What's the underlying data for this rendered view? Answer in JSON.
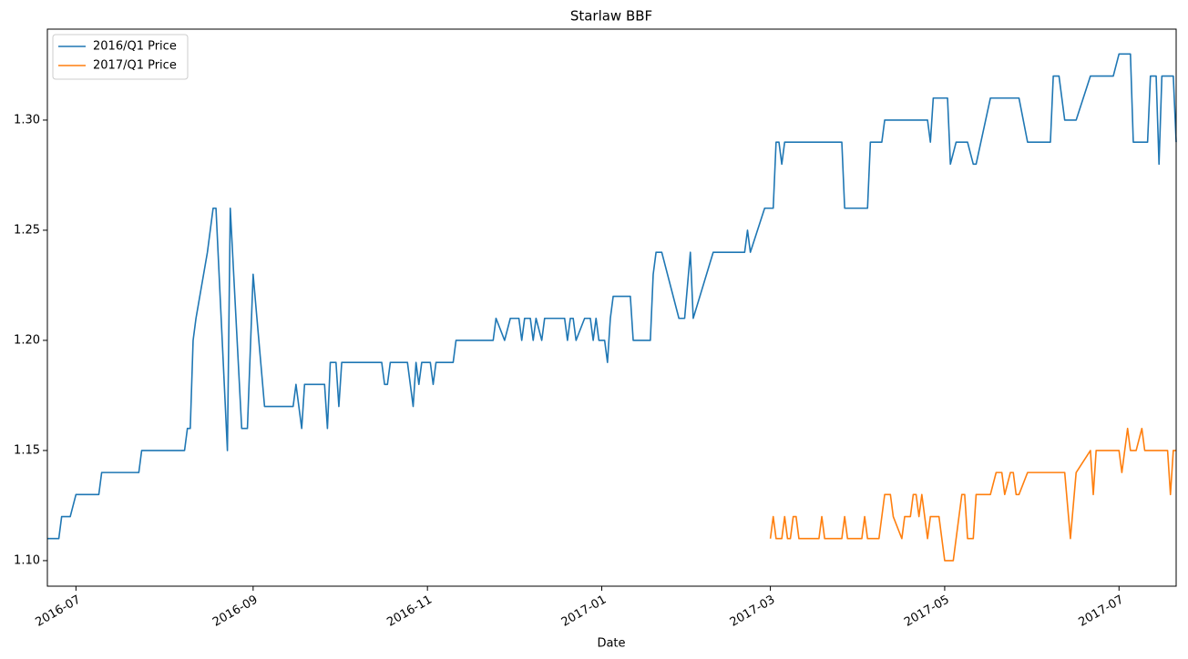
{
  "chart_data": {
    "type": "line",
    "title": "Starlaw BBF",
    "x_label": "Date",
    "xlim": [
      "2016-06-21",
      "2017-07-21"
    ],
    "xticks": [
      "2016-07",
      "2016-09",
      "2016-11",
      "2017-01",
      "2017-03",
      "2017-05",
      "2017-07"
    ],
    "ylim": [
      1.0884,
      1.3413
    ],
    "yticks": [
      {
        "value": 1.1,
        "label": "1.10"
      },
      1.15,
      {
        "value": 1.2,
        "label": "1.20"
      },
      1.25,
      {
        "value": 1.3,
        "label": "1.30"
      }
    ],
    "grid": false,
    "legend": "upper left",
    "series": [
      {
        "name": "2016/Q1 Price",
        "color": "#1f77b4",
        "x": [
          "2016-06-21",
          "2016-06-25",
          "2016-06-26",
          "2016-06-29",
          "2016-07-01",
          "2016-07-09",
          "2016-07-10",
          "2016-07-23",
          "2016-07-24",
          "2016-08-08",
          "2016-08-09",
          "2016-08-10",
          "2016-08-11",
          "2016-08-12",
          "2016-08-16",
          "2016-08-18",
          "2016-08-19",
          "2016-08-23",
          "2016-08-24",
          "2016-08-28",
          "2016-08-30",
          "2016-09-01",
          "2016-09-05",
          "2016-09-15",
          "2016-09-16",
          "2016-09-18",
          "2016-09-19",
          "2016-09-26",
          "2016-09-27",
          "2016-09-28",
          "2016-09-30",
          "2016-10-01",
          "2016-10-02",
          "2016-10-16",
          "2016-10-17",
          "2016-10-18",
          "2016-10-19",
          "2016-10-25",
          "2016-10-27",
          "2016-10-28",
          "2016-10-29",
          "2016-10-30",
          "2016-11-02",
          "2016-11-03",
          "2016-11-04",
          "2016-11-10",
          "2016-11-11",
          "2016-11-24",
          "2016-11-25",
          "2016-11-28",
          "2016-11-30",
          "2016-12-03",
          "2016-12-04",
          "2016-12-05",
          "2016-12-07",
          "2016-12-08",
          "2016-12-09",
          "2016-12-11",
          "2016-12-12",
          "2016-12-19",
          "2016-12-20",
          "2016-12-21",
          "2016-12-22",
          "2016-12-23",
          "2016-12-26",
          "2016-12-28",
          "2016-12-29",
          "2016-12-30",
          "2016-12-31",
          "2017-01-02",
          "2017-01-03",
          "2017-01-04",
          "2017-01-05",
          "2017-01-11",
          "2017-01-12",
          "2017-01-18",
          "2017-01-19",
          "2017-01-20",
          "2017-01-22",
          "2017-01-28",
          "2017-01-30",
          "2017-02-01",
          "2017-02-02",
          "2017-02-09",
          "2017-02-20",
          "2017-02-21",
          "2017-02-22",
          "2017-02-27",
          "2017-03-02",
          "2017-03-03",
          "2017-03-04",
          "2017-03-05",
          "2017-03-06",
          "2017-03-26",
          "2017-03-27",
          "2017-04-04",
          "2017-04-05",
          "2017-04-09",
          "2017-04-10",
          "2017-04-25",
          "2017-04-26",
          "2017-04-27",
          "2017-05-02",
          "2017-05-03",
          "2017-05-05",
          "2017-05-09",
          "2017-05-11",
          "2017-05-12",
          "2017-05-17",
          "2017-05-27",
          "2017-05-30",
          "2017-06-07",
          "2017-06-08",
          "2017-06-10",
          "2017-06-12",
          "2017-06-16",
          "2017-06-21",
          "2017-06-29",
          "2017-07-01",
          "2017-07-05",
          "2017-07-06",
          "2017-07-11",
          "2017-07-12",
          "2017-07-14",
          "2017-07-15",
          "2017-07-16",
          "2017-07-20",
          "2017-07-21"
        ],
        "values": [
          1.11,
          1.11,
          1.12,
          1.12,
          1.13,
          1.13,
          1.14,
          1.14,
          1.15,
          1.15,
          1.16,
          1.16,
          1.2,
          1.21,
          1.24,
          1.26,
          1.26,
          1.15,
          1.26,
          1.16,
          1.16,
          1.23,
          1.17,
          1.17,
          1.18,
          1.16,
          1.18,
          1.18,
          1.16,
          1.19,
          1.19,
          1.17,
          1.19,
          1.19,
          1.18,
          1.18,
          1.19,
          1.19,
          1.17,
          1.19,
          1.18,
          1.19,
          1.19,
          1.18,
          1.19,
          1.19,
          1.2,
          1.2,
          1.21,
          1.2,
          1.21,
          1.21,
          1.2,
          1.21,
          1.21,
          1.2,
          1.21,
          1.2,
          1.21,
          1.21,
          1.2,
          1.21,
          1.21,
          1.2,
          1.21,
          1.21,
          1.2,
          1.21,
          1.2,
          1.2,
          1.19,
          1.21,
          1.22,
          1.22,
          1.2,
          1.2,
          1.23,
          1.24,
          1.24,
          1.21,
          1.21,
          1.24,
          1.21,
          1.24,
          1.24,
          1.25,
          1.24,
          1.26,
          1.26,
          1.29,
          1.29,
          1.28,
          1.29,
          1.29,
          1.26,
          1.26,
          1.29,
          1.29,
          1.3,
          1.3,
          1.29,
          1.31,
          1.31,
          1.28,
          1.29,
          1.29,
          1.28,
          1.28,
          1.31,
          1.31,
          1.29,
          1.29,
          1.32,
          1.32,
          1.3,
          1.3,
          1.32,
          1.32,
          1.33,
          1.33,
          1.29,
          1.29,
          1.32,
          1.32,
          1.28,
          1.32,
          1.32,
          1.29
        ]
      },
      {
        "name": "2017/Q1 Price",
        "color": "#ff7f0e",
        "x": [
          "2017-03-01",
          "2017-03-02",
          "2017-03-03",
          "2017-03-05",
          "2017-03-06",
          "2017-03-07",
          "2017-03-08",
          "2017-03-09",
          "2017-03-10",
          "2017-03-11",
          "2017-03-18",
          "2017-03-19",
          "2017-03-20",
          "2017-03-26",
          "2017-03-27",
          "2017-03-28",
          "2017-04-02",
          "2017-04-03",
          "2017-04-04",
          "2017-04-08",
          "2017-04-10",
          "2017-04-12",
          "2017-04-13",
          "2017-04-16",
          "2017-04-17",
          "2017-04-19",
          "2017-04-20",
          "2017-04-21",
          "2017-04-22",
          "2017-04-23",
          "2017-04-25",
          "2017-04-26",
          "2017-04-29",
          "2017-05-01",
          "2017-05-04",
          "2017-05-07",
          "2017-05-08",
          "2017-05-09",
          "2017-05-11",
          "2017-05-12",
          "2017-05-17",
          "2017-05-19",
          "2017-05-21",
          "2017-05-22",
          "2017-05-24",
          "2017-05-25",
          "2017-05-26",
          "2017-05-27",
          "2017-05-30",
          "2017-06-12",
          "2017-06-14",
          "2017-06-16",
          "2017-06-21",
          "2017-06-22",
          "2017-06-23",
          "2017-07-01",
          "2017-07-02",
          "2017-07-04",
          "2017-07-05",
          "2017-07-07",
          "2017-07-09",
          "2017-07-10",
          "2017-07-18",
          "2017-07-19",
          "2017-07-20",
          "2017-07-21"
        ],
        "values": [
          1.11,
          1.12,
          1.11,
          1.11,
          1.12,
          1.11,
          1.11,
          1.12,
          1.12,
          1.11,
          1.11,
          1.12,
          1.11,
          1.11,
          1.12,
          1.11,
          1.11,
          1.12,
          1.11,
          1.11,
          1.13,
          1.13,
          1.12,
          1.11,
          1.12,
          1.12,
          1.13,
          1.13,
          1.12,
          1.13,
          1.11,
          1.12,
          1.12,
          1.1,
          1.1,
          1.13,
          1.13,
          1.11,
          1.11,
          1.13,
          1.13,
          1.14,
          1.14,
          1.13,
          1.14,
          1.14,
          1.13,
          1.13,
          1.14,
          1.14,
          1.11,
          1.14,
          1.15,
          1.13,
          1.15,
          1.15,
          1.14,
          1.16,
          1.15,
          1.15,
          1.16,
          1.15,
          1.15,
          1.13,
          1.15,
          1.15
        ]
      }
    ]
  }
}
